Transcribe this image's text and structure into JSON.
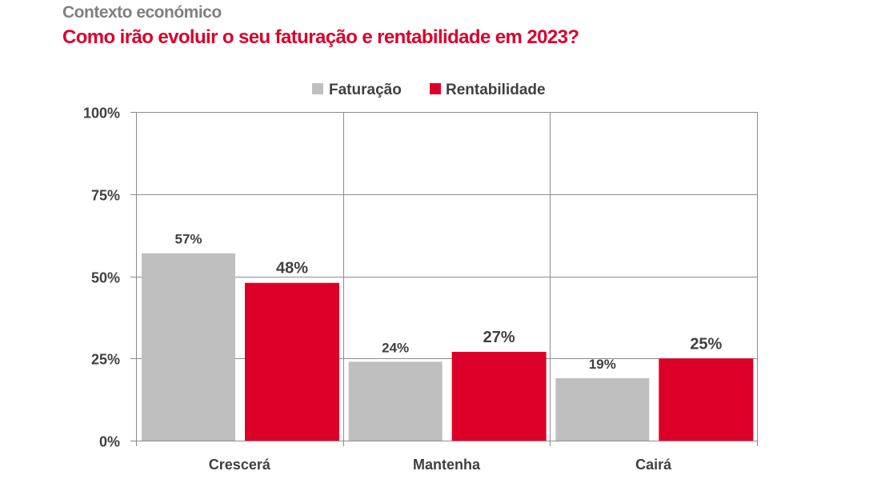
{
  "header": {
    "subtitle": "Contexto económico",
    "title": "Como irão evoluir o seu faturação e rentabilidade em 2023?"
  },
  "colors": {
    "faturacao": "#bfbfbf",
    "rentabilidade": "#dc0028",
    "grid": "#8c8c8c",
    "text": "#404040"
  },
  "chart_data": {
    "type": "bar",
    "title": "Como irão evoluir o seu faturação e rentabilidade em 2023?",
    "categories": [
      "Crescerá",
      "Mantenha",
      "Cairá"
    ],
    "series": [
      {
        "name": "Faturação",
        "values": [
          57,
          24,
          19
        ],
        "labels": [
          "57%",
          "24%",
          "19%"
        ]
      },
      {
        "name": "Rentabilidade",
        "values": [
          48,
          27,
          25
        ],
        "labels": [
          "48%",
          "27%",
          "25%"
        ]
      }
    ],
    "ylim": [
      0,
      100
    ],
    "yticks": [
      0,
      25,
      50,
      75,
      100
    ],
    "ytick_labels": [
      "0%",
      "25%",
      "50%",
      "75%",
      "100%"
    ],
    "xlabel": "",
    "ylabel": "",
    "grid": true,
    "legend_position": "top-center"
  }
}
